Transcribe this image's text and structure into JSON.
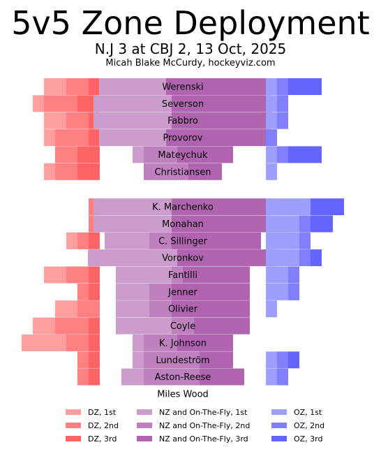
{
  "header": {
    "title": "5v5 Zone Deployment",
    "subtitle": "N.J 3 at CBJ 2, 13 Oct, 2025",
    "credit": "Micah Blake McCurdy, hockeyviz.com"
  },
  "colors": {
    "dz": [
      "#ff9e9e",
      "#ff8080",
      "#ff6464"
    ],
    "nz": [
      "#cc9ccc",
      "#bf80bf",
      "#b064b0"
    ],
    "oz": [
      "#9e9eff",
      "#8080ff",
      "#6464ff"
    ]
  },
  "chart_data": {
    "type": "bar",
    "title": "5v5 Zone Deployment",
    "note": "Stacked horizontal shift-start counts by zone (DZ / NZ and On-The-Fly / OZ), split by 1st, 2nd, 3rd",
    "categories": [
      "Werenski",
      "Severson",
      "Fabbro",
      "Provorov",
      "Mateychuk",
      "Christiansen",
      "K. Marchenko",
      "Monahan",
      "C. Sillinger",
      "Voronkov",
      "Fantilli",
      "Jenner",
      "Olivier",
      "Coyle",
      "K. Johnson",
      "Lundeström",
      "Aston-Reese",
      "Miles Wood"
    ],
    "groups": [
      6,
      12
    ],
    "series": [
      {
        "name": "DZ, 1st",
        "values": [
          2,
          1,
          2,
          1,
          0,
          1,
          0,
          0,
          1,
          0,
          2,
          0,
          2,
          2,
          4,
          0,
          0,
          0
        ]
      },
      {
        "name": "DZ, 2nd",
        "values": [
          2,
          3,
          2,
          3,
          2,
          2,
          1,
          1,
          1,
          0,
          2,
          1,
          2,
          3,
          2,
          1,
          1,
          0
        ]
      },
      {
        "name": "DZ, 3rd",
        "values": [
          1,
          2,
          1,
          1,
          2,
          2,
          0,
          0,
          1,
          0,
          1,
          1,
          0,
          1,
          1,
          1,
          1,
          0
        ]
      },
      {
        "name": "NZ and On-The-Fly, 1st",
        "values": [
          6,
          7,
          7,
          6,
          1,
          0,
          7,
          7,
          4,
          8,
          5,
          3,
          3,
          5,
          1,
          1,
          2,
          0
        ]
      },
      {
        "name": "NZ and On-The-Fly, 2nd",
        "values": [
          0,
          0,
          0,
          0,
          3,
          4,
          0,
          0,
          2,
          0,
          1,
          2,
          2,
          2,
          3,
          5,
          5,
          0
        ]
      },
      {
        "name": "NZ and On-The-Fly, 3rd",
        "values": [
          9,
          9,
          9,
          9,
          5,
          3,
          9,
          9,
          8,
          9,
          6,
          7,
          7,
          5,
          5,
          3,
          4,
          0
        ]
      },
      {
        "name": "OZ, 1st",
        "values": [
          1,
          1,
          1,
          0,
          1,
          1,
          4,
          3,
          3,
          3,
          2,
          2,
          1,
          0,
          0,
          1,
          1,
          0
        ]
      },
      {
        "name": "OZ, 2nd",
        "values": [
          1,
          1,
          1,
          1,
          1,
          0,
          0,
          1,
          1,
          1,
          1,
          1,
          0,
          0,
          0,
          1,
          1,
          0
        ]
      },
      {
        "name": "OZ, 3rd",
        "values": [
          3,
          0,
          0,
          0,
          3,
          0,
          3,
          2,
          0,
          1,
          0,
          0,
          0,
          0,
          0,
          1,
          0,
          0
        ]
      }
    ]
  },
  "legend": {
    "columns": [
      [
        "DZ, 1st",
        "DZ, 2nd",
        "DZ, 3rd"
      ],
      [
        "NZ and On-The-Fly, 1st",
        "NZ and On-The-Fly, 2nd",
        "NZ and On-The-Fly, 3rd"
      ],
      [
        "OZ, 1st",
        "OZ, 2nd",
        "OZ, 3rd"
      ]
    ]
  }
}
